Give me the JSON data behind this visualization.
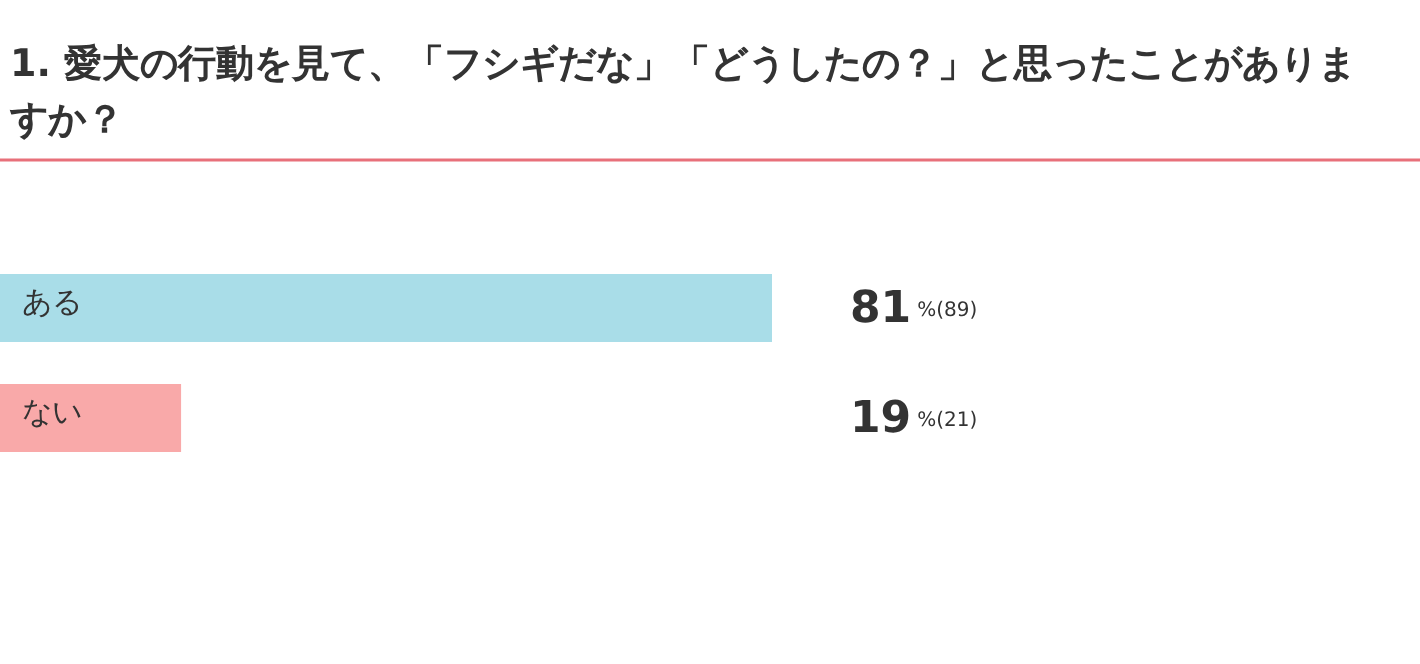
{
  "chart_data": {
    "type": "bar",
    "orientation": "horizontal",
    "title": "1. 愛犬の行動を見て、「フシギだな」「どうしたの？」と思ったことがありますか？",
    "categories": [
      "ある",
      "ない"
    ],
    "values": [
      81,
      19
    ],
    "colors": [
      "#a9dde8",
      "#f9a9a9"
    ],
    "value_labels": [
      "81%(89)",
      "19%(21)"
    ]
  }
}
